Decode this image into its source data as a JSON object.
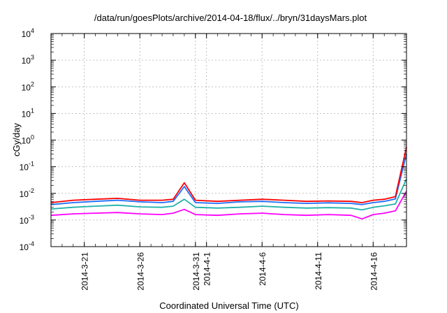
{
  "chart_data": {
    "type": "line",
    "title": "/data/run/goesPlots/archive/2014-04-18/flux/../bryn/31daysMars.plot",
    "xlabel": "Coordinated Universal Time (UTC)",
    "ylabel": "cGy/day",
    "y_scale": "log",
    "ylim": [
      0.0001,
      10000
    ],
    "xlim": [
      "2014-03-18",
      "2014-04-19"
    ],
    "grid": true,
    "y_ticks": [
      {
        "value": 0.0001,
        "base": "10",
        "exp": "-4"
      },
      {
        "value": 0.001,
        "base": "10",
        "exp": "-3"
      },
      {
        "value": 0.01,
        "base": "10",
        "exp": "-2"
      },
      {
        "value": 0.1,
        "base": "10",
        "exp": "-1"
      },
      {
        "value": 1,
        "base": "10",
        "exp": "0"
      },
      {
        "value": 10,
        "base": "10",
        "exp": "1"
      },
      {
        "value": 100,
        "base": "10",
        "exp": "2"
      },
      {
        "value": 1000,
        "base": "10",
        "exp": "3"
      },
      {
        "value": 10000,
        "base": "10",
        "exp": "4"
      }
    ],
    "x_tick_labels": [
      "2014-3-21",
      "2014-3-26",
      "2014-3-31",
      "2014-4-1",
      "2014-4-6",
      "2014-4-11",
      "2014-4-16"
    ],
    "x_ticks": [
      "2014-03-21",
      "2014-03-26",
      "2014-03-31",
      "2014-04-01",
      "2014-04-06",
      "2014-04-11",
      "2014-04-16"
    ],
    "x": [
      "2014-03-18",
      "2014-03-20",
      "2014-03-22",
      "2014-03-24",
      "2014-03-26",
      "2014-03-28",
      "2014-03-29",
      "2014-03-30",
      "2014-03-31",
      "2014-04-02",
      "2014-04-04",
      "2014-04-06",
      "2014-04-08",
      "2014-04-10",
      "2014-04-12",
      "2014-04-14",
      "2014-04-15",
      "2014-04-16",
      "2014-04-17",
      "2014-04-18",
      "2014-04-19"
    ],
    "series": [
      {
        "color": "#ff0000",
        "values": [
          0.0045,
          0.0055,
          0.006,
          0.0065,
          0.0055,
          0.0055,
          0.006,
          0.025,
          0.0055,
          0.005,
          0.0055,
          0.006,
          0.0055,
          0.005,
          0.0052,
          0.005,
          0.0045,
          0.0055,
          0.006,
          0.0075,
          0.55
        ]
      },
      {
        "color": "#1e6cff",
        "values": [
          0.0038,
          0.0045,
          0.005,
          0.0055,
          0.0048,
          0.0045,
          0.005,
          0.018,
          0.0045,
          0.0042,
          0.0048,
          0.005,
          0.0045,
          0.0042,
          0.0044,
          0.0042,
          0.0038,
          0.0045,
          0.005,
          0.0062,
          0.3
        ]
      },
      {
        "color": "#20b2aa",
        "values": [
          0.0026,
          0.003,
          0.0033,
          0.0036,
          0.0031,
          0.003,
          0.0033,
          0.006,
          0.003,
          0.0028,
          0.003,
          0.0033,
          0.003,
          0.0028,
          0.0029,
          0.0028,
          0.0024,
          0.003,
          0.0034,
          0.004,
          0.035
        ]
      },
      {
        "color": "#ff00ff",
        "values": [
          0.0015,
          0.0017,
          0.0018,
          0.0019,
          0.0017,
          0.0016,
          0.0018,
          0.0025,
          0.0016,
          0.0015,
          0.0017,
          0.0018,
          0.0016,
          0.0015,
          0.0016,
          0.0015,
          0.0011,
          0.0016,
          0.0018,
          0.0022,
          0.012
        ]
      }
    ]
  }
}
